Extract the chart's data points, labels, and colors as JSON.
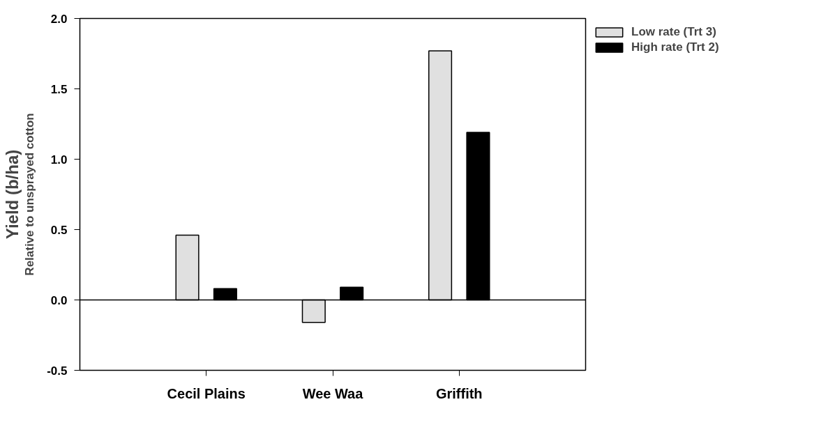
{
  "chart_data": {
    "type": "bar",
    "ylabel": "Yield (b/ha)",
    "annotations": [
      "Relative to unsprayed cotton"
    ],
    "categories": [
      "Cecil Plains",
      "Wee Waa",
      "Griffith"
    ],
    "series": [
      {
        "name": "Low rate (Trt 3)",
        "color": "#e0e0e0",
        "values": [
          0.46,
          -0.16,
          1.77
        ]
      },
      {
        "name": "High rate (Trt 2)",
        "color": "#000000",
        "values": [
          0.08,
          0.09,
          1.19
        ]
      }
    ],
    "ylim": [
      -0.5,
      2.0
    ],
    "yticks": [
      {
        "value": -0.5,
        "label": "-0.5"
      },
      {
        "value": 0,
        "label": "0.0"
      },
      {
        "value": 0.5,
        "label": "0.5"
      },
      {
        "value": 1,
        "label": "1.0"
      },
      {
        "value": 1.5,
        "label": "1.5"
      },
      {
        "value": 2,
        "label": "2.0"
      }
    ],
    "ref_lines": [
      {
        "axis": "y",
        "value": 0
      }
    ],
    "grid": false,
    "legend": "top right"
  }
}
